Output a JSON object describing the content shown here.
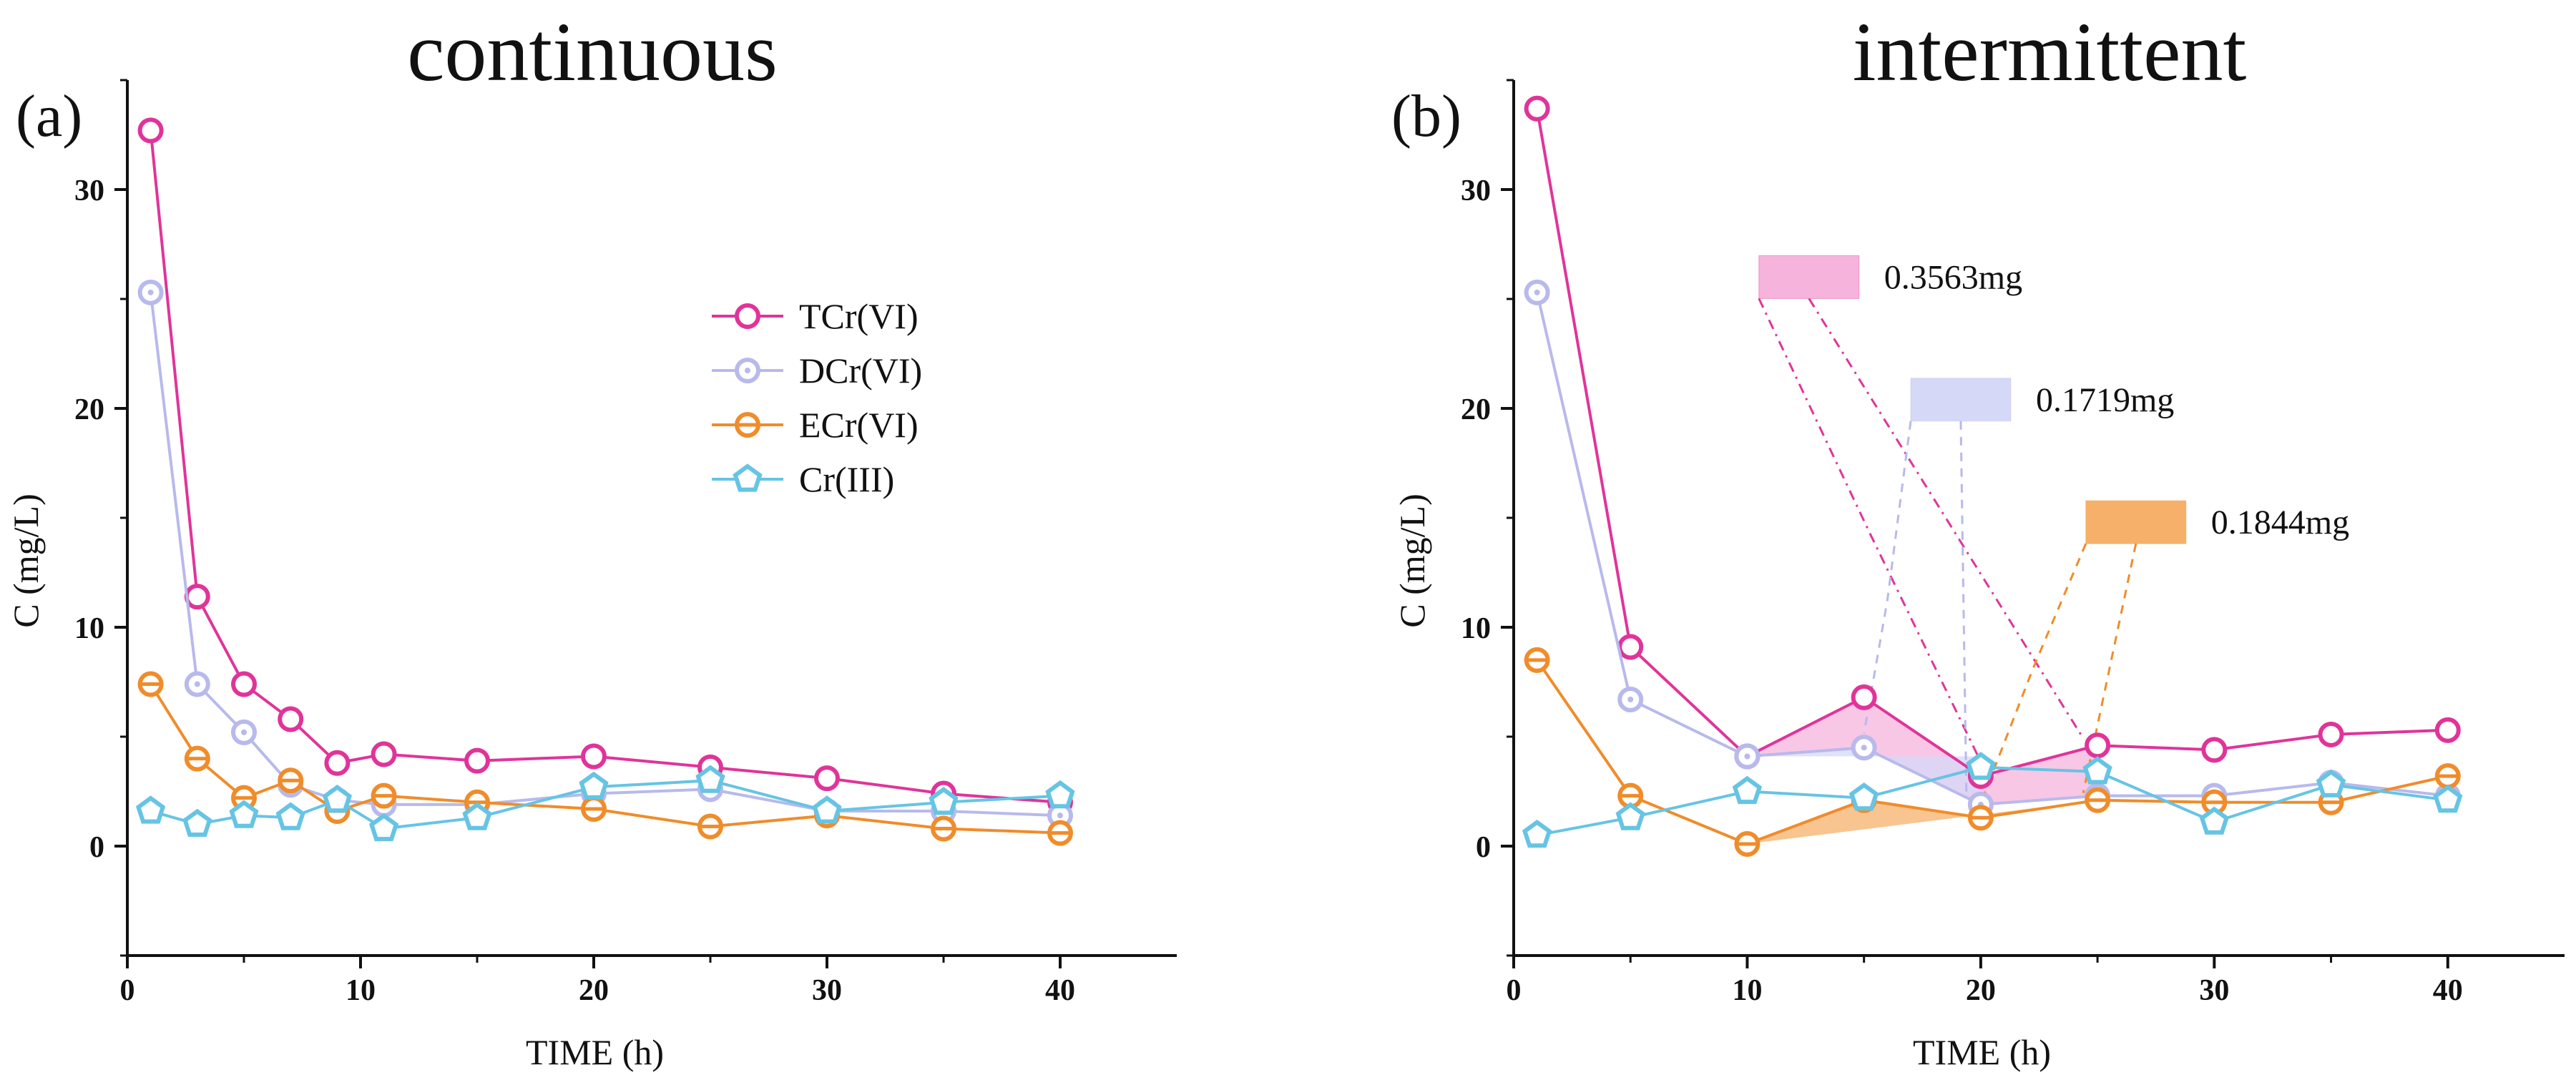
{
  "chart_data": [
    {
      "type": "line",
      "panel_label": "(a)",
      "title": "continuous",
      "xlabel": "TIME (h)",
      "ylabel": "C (mg/L)",
      "xlim": [
        0,
        45
      ],
      "ylim": [
        -5,
        35
      ],
      "xticks": [
        0,
        10,
        20,
        30,
        40
      ],
      "yticks": [
        0,
        10,
        20,
        30
      ],
      "legend": {
        "position": "right-upper-middle"
      },
      "series": [
        {
          "name": "TCr(VI)",
          "color": "#e0349a",
          "marker": "circle",
          "x": [
            1,
            3,
            5,
            7,
            9,
            11,
            15,
            20,
            25,
            30,
            35,
            40
          ],
          "y": [
            32.7,
            11.4,
            7.4,
            5.8,
            3.8,
            4.2,
            3.9,
            4.1,
            3.6,
            3.1,
            2.4,
            2.0
          ]
        },
        {
          "name": "DCr(VI)",
          "color": "#b8b9ec",
          "marker": "dotted-circle",
          "x": [
            1,
            3,
            5,
            7,
            9,
            11,
            15,
            20,
            25,
            30,
            35,
            40
          ],
          "y": [
            25.3,
            7.4,
            5.2,
            2.8,
            2.1,
            1.9,
            1.9,
            2.4,
            2.6,
            1.6,
            1.6,
            1.4
          ]
        },
        {
          "name": "ECr(VI)",
          "color": "#f08c2a",
          "marker": "crossed-circle",
          "x": [
            1,
            3,
            5,
            7,
            9,
            11,
            15,
            20,
            25,
            30,
            35,
            40
          ],
          "y": [
            7.4,
            4.0,
            2.2,
            3.0,
            1.6,
            2.3,
            2.0,
            1.7,
            0.9,
            1.4,
            0.8,
            0.6
          ]
        },
        {
          "name": "Cr(III)",
          "color": "#66c4e4",
          "marker": "pentagon",
          "x": [
            1,
            3,
            5,
            7,
            9,
            11,
            15,
            20,
            25,
            30,
            35,
            40
          ],
          "y": [
            1.6,
            1.0,
            1.4,
            1.3,
            2.1,
            0.8,
            1.3,
            2.7,
            3.0,
            1.6,
            2.0,
            2.3
          ]
        }
      ]
    },
    {
      "type": "line",
      "panel_label": "(b)",
      "title": "intermittent",
      "xlabel": "TIME (h)",
      "ylabel": "C (mg/L)",
      "xlim": [
        0,
        45
      ],
      "ylim": [
        -5,
        35
      ],
      "xticks": [
        0,
        10,
        20,
        30,
        40
      ],
      "yticks": [
        0,
        10,
        20,
        30
      ],
      "series": [
        {
          "name": "TCr(VI)",
          "color": "#e0349a",
          "marker": "circle",
          "x": [
            1,
            5,
            10,
            15,
            20,
            25,
            30,
            35,
            40
          ],
          "y": [
            33.7,
            9.1,
            4.1,
            6.8,
            3.2,
            4.6,
            4.4,
            5.1,
            5.3
          ]
        },
        {
          "name": "DCr(VI)",
          "color": "#b8b9ec",
          "marker": "dotted-circle",
          "x": [
            1,
            5,
            10,
            15,
            20,
            25,
            30,
            35,
            40
          ],
          "y": [
            25.3,
            6.7,
            4.1,
            4.5,
            1.9,
            2.3,
            2.3,
            2.9,
            2.3
          ]
        },
        {
          "name": "ECr(VI)",
          "color": "#f08c2a",
          "marker": "crossed-circle",
          "x": [
            1,
            5,
            10,
            15,
            20,
            25,
            30,
            35,
            40
          ],
          "y": [
            8.5,
            2.3,
            0.1,
            2.1,
            1.3,
            2.1,
            2.0,
            2.0,
            3.2
          ]
        },
        {
          "name": "Cr(III)",
          "color": "#66c4e4",
          "marker": "pentagon",
          "x": [
            1,
            5,
            10,
            15,
            20,
            25,
            30,
            35,
            40
          ],
          "y": [
            0.5,
            1.3,
            2.5,
            2.2,
            3.6,
            3.4,
            1.1,
            2.8,
            2.1
          ]
        }
      ],
      "annotations": [
        {
          "label": "0.3563mg",
          "series": "TCr(VI)",
          "color": "#e0349a",
          "fill": "#f6b4dc",
          "line_style": "dash-dot",
          "x_range": [
            10,
            25
          ],
          "box_data_pos": [
            10.5,
            26.0
          ]
        },
        {
          "label": "0.1719mg",
          "series": "DCr(VI)",
          "color": "#b8b9ec",
          "fill": "#d6d8f8",
          "line_style": "dashed",
          "x_range": [
            10,
            20
          ],
          "box_data_pos": [
            17.0,
            20.4
          ]
        },
        {
          "label": "0.1844mg",
          "series": "ECr(VI)",
          "color": "#f08c2a",
          "fill": "#f6b06a",
          "line_style": "dashed",
          "x_range": [
            10,
            25
          ],
          "box_data_pos": [
            24.5,
            14.8
          ]
        }
      ]
    }
  ]
}
